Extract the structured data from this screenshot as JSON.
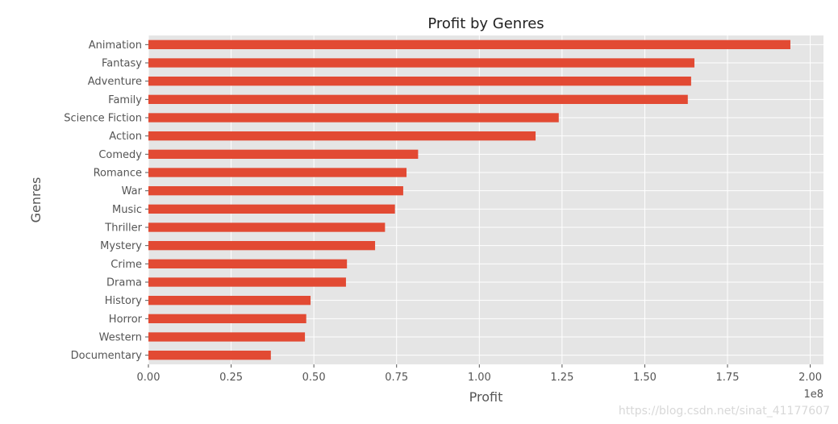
{
  "chart_data": {
    "type": "bar",
    "orientation": "horizontal",
    "title": "Profit by Genres",
    "xlabel": "Profit",
    "ylabel": "Genres",
    "x_scale_label": "1e8",
    "x_ticks": [
      "0.00",
      "0.25",
      "0.50",
      "0.75",
      "1.00",
      "1.25",
      "1.50",
      "1.75",
      "2.00"
    ],
    "xlim": [
      0,
      2.04
    ],
    "grid": true,
    "categories": [
      "Animation",
      "Fantasy",
      "Adventure",
      "Family",
      "Science Fiction",
      "Action",
      "Comedy",
      "Romance",
      "War",
      "Music",
      "Thriller",
      "Mystery",
      "Crime",
      "Drama",
      "History",
      "Horror",
      "Western",
      "Documentary"
    ],
    "values": [
      1.94,
      1.65,
      1.64,
      1.63,
      1.24,
      1.17,
      0.815,
      0.78,
      0.77,
      0.745,
      0.715,
      0.685,
      0.6,
      0.597,
      0.49,
      0.477,
      0.473,
      0.37
    ],
    "unit_multiplier": 100000000,
    "bar_color": "#E24A33",
    "plot_background": "#E5E5E5",
    "grid_color": "#FFFFFF"
  },
  "watermark": "https://blog.csdn.net/sinat_41177607"
}
